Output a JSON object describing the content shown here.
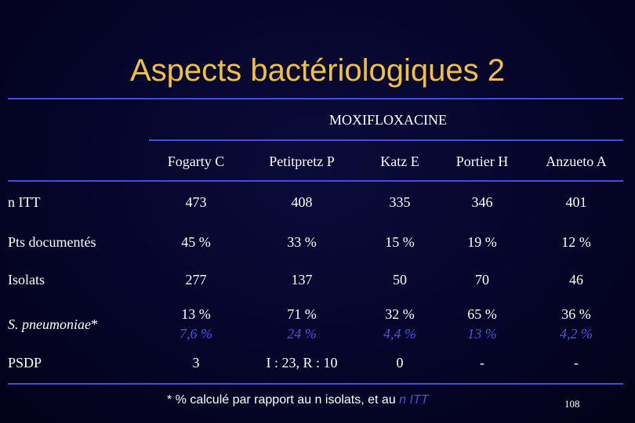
{
  "title": "Aspects bactériologiques 2",
  "group_header": "MOXIFLOXACINE",
  "columns": [
    "Fogarty C",
    "Petitpretz P",
    "Katz E",
    "Portier H",
    "Anzueto A"
  ],
  "rows": [
    {
      "label": "n ITT",
      "values": [
        "473",
        "408",
        "335",
        "346",
        "401"
      ]
    },
    {
      "label": "Pts documentés",
      "values": [
        "45 %",
        "33 %",
        "15 %",
        "19 %",
        "12 %"
      ]
    },
    {
      "label": "Isolats",
      "values": [
        "277",
        "137",
        "50",
        "70",
        "46"
      ]
    },
    {
      "label": "S. pneumoniae",
      "label_suffix": "*",
      "values": [
        "13 %",
        "71 %",
        "32 %",
        "65 %",
        "36 %"
      ],
      "sub_values": [
        "7,6 %",
        "24 %",
        "4,4 %",
        "13 %",
        "4,2 %"
      ]
    },
    {
      "label": "PSDP",
      "values": [
        "3",
        "I : 23, R : 10",
        "0",
        "-",
        "-"
      ]
    }
  ],
  "footnote": {
    "text": "* % calculé par rapport au n isolats, et au ",
    "highlight": "n ITT"
  },
  "page_number": "108",
  "colors": {
    "title": "#f0c040",
    "rule": "#4a4ae0",
    "highlight": "#5050e8",
    "background": "#05052a"
  }
}
